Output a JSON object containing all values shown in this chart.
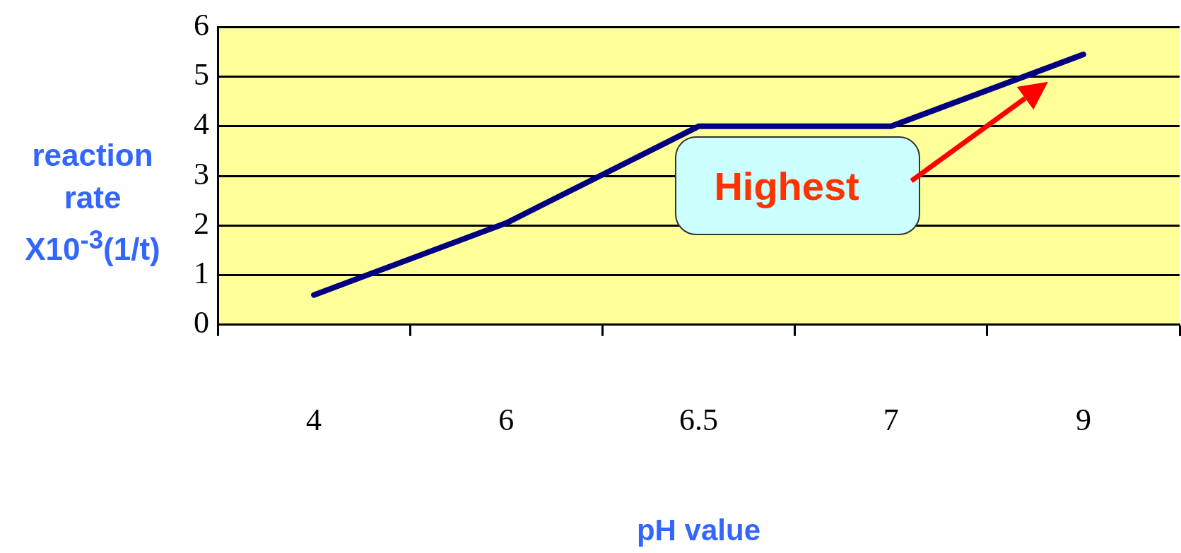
{
  "chart_data": {
    "type": "line",
    "xlabel": "pH value",
    "ylabel": "reaction rate X10$^{-3}$(1/t)",
    "categories": [
      "4",
      "6",
      "6.5",
      "7",
      "9"
    ],
    "series": [
      {
        "color": "#000080",
        "values": [
          0.6,
          2.05,
          4.0,
          4.0,
          5.45
        ]
      }
    ],
    "ylim": [
      0,
      6
    ],
    "yticks": [
      0,
      1,
      2,
      3,
      4,
      5,
      6
    ],
    "grid": "y",
    "legend": false,
    "marker": "none",
    "annotations": [
      "Highest"
    ]
  }
}
